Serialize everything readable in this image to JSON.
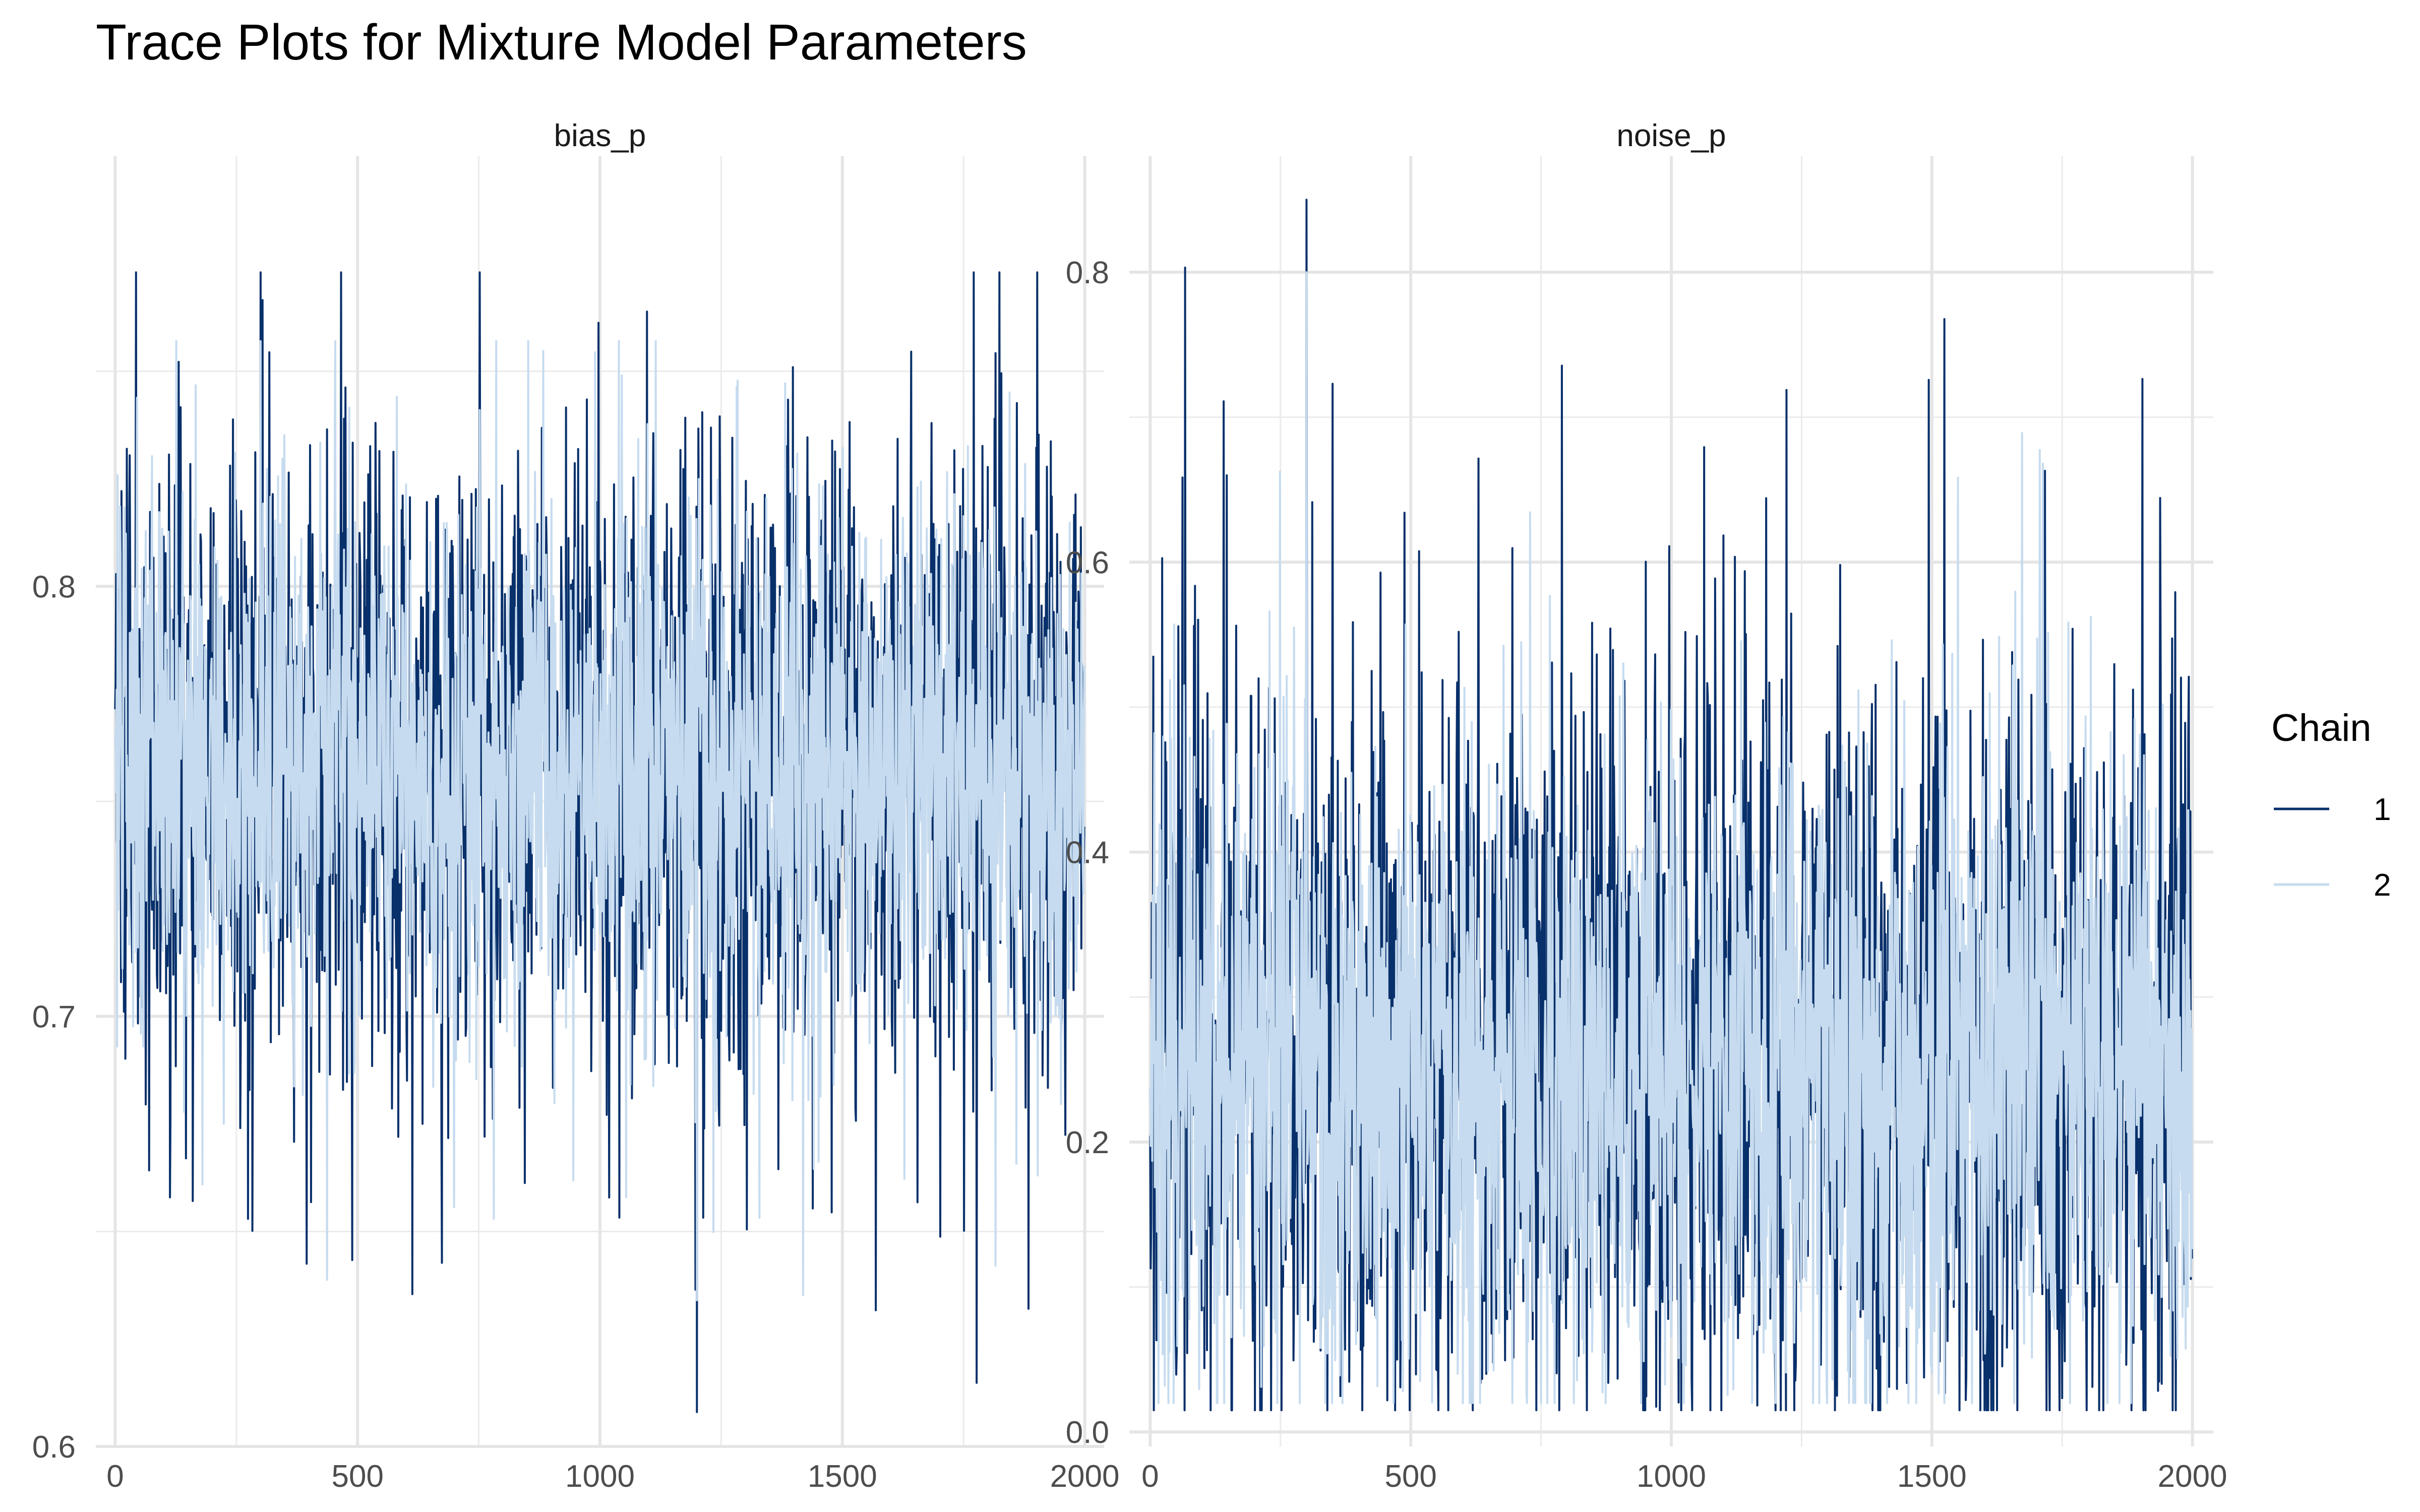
{
  "chart_data": {
    "type": "line",
    "title": "Trace Plots for Mixture Model Parameters",
    "legend": {
      "title": "Chain",
      "position": "right",
      "entries": [
        {
          "label": "1",
          "color": "#08306b"
        },
        {
          "label": "2",
          "color": "#c6dbef"
        }
      ]
    },
    "grid": true,
    "panels": [
      {
        "strip": "bias_p",
        "xlim": [
          -40,
          2040
        ],
        "ylim": [
          0.6,
          0.9
        ],
        "x_ticks": [
          0,
          500,
          1000,
          1500,
          2000
        ],
        "x_tick_labels": [
          "0",
          "500",
          "1000",
          "1500",
          "2000"
        ],
        "y_ticks": [
          0.6,
          0.7,
          0.8
        ],
        "y_tick_labels": [
          "0.6",
          "0.7",
          "0.8"
        ],
        "y_minor": [
          0.65,
          0.75,
          0.85
        ],
        "series": [
          {
            "name": "1",
            "color": "#08306b",
            "n_iter": 2000,
            "center": 0.76,
            "sd": 0.036,
            "min": 0.608,
            "max": 0.873
          },
          {
            "name": "2",
            "color": "#c6dbef",
            "n_iter": 2000,
            "center": 0.758,
            "sd": 0.03,
            "min": 0.634,
            "max": 0.857
          }
        ]
      },
      {
        "strip": "noise_p",
        "xlim": [
          -40,
          2040
        ],
        "ylim": [
          -0.01,
          0.88
        ],
        "x_ticks": [
          0,
          500,
          1000,
          1500,
          2000
        ],
        "x_tick_labels": [
          "0",
          "500",
          "1000",
          "1500",
          "2000"
        ],
        "y_ticks": [
          0.0,
          0.2,
          0.4,
          0.6,
          0.8
        ],
        "y_tick_labels": [
          "0.0",
          "0.2",
          "0.4",
          "0.6",
          "0.8"
        ],
        "y_minor": [
          0.1,
          0.3,
          0.5,
          0.7
        ],
        "series": [
          {
            "name": "1",
            "color": "#08306b",
            "n_iter": 2000,
            "center": 0.26,
            "sd": 0.13,
            "min": 0.015,
            "max": 0.85
          },
          {
            "name": "2",
            "color": "#c6dbef",
            "n_iter": 2000,
            "center": 0.25,
            "sd": 0.11,
            "min": 0.02,
            "max": 0.8
          }
        ]
      }
    ]
  }
}
